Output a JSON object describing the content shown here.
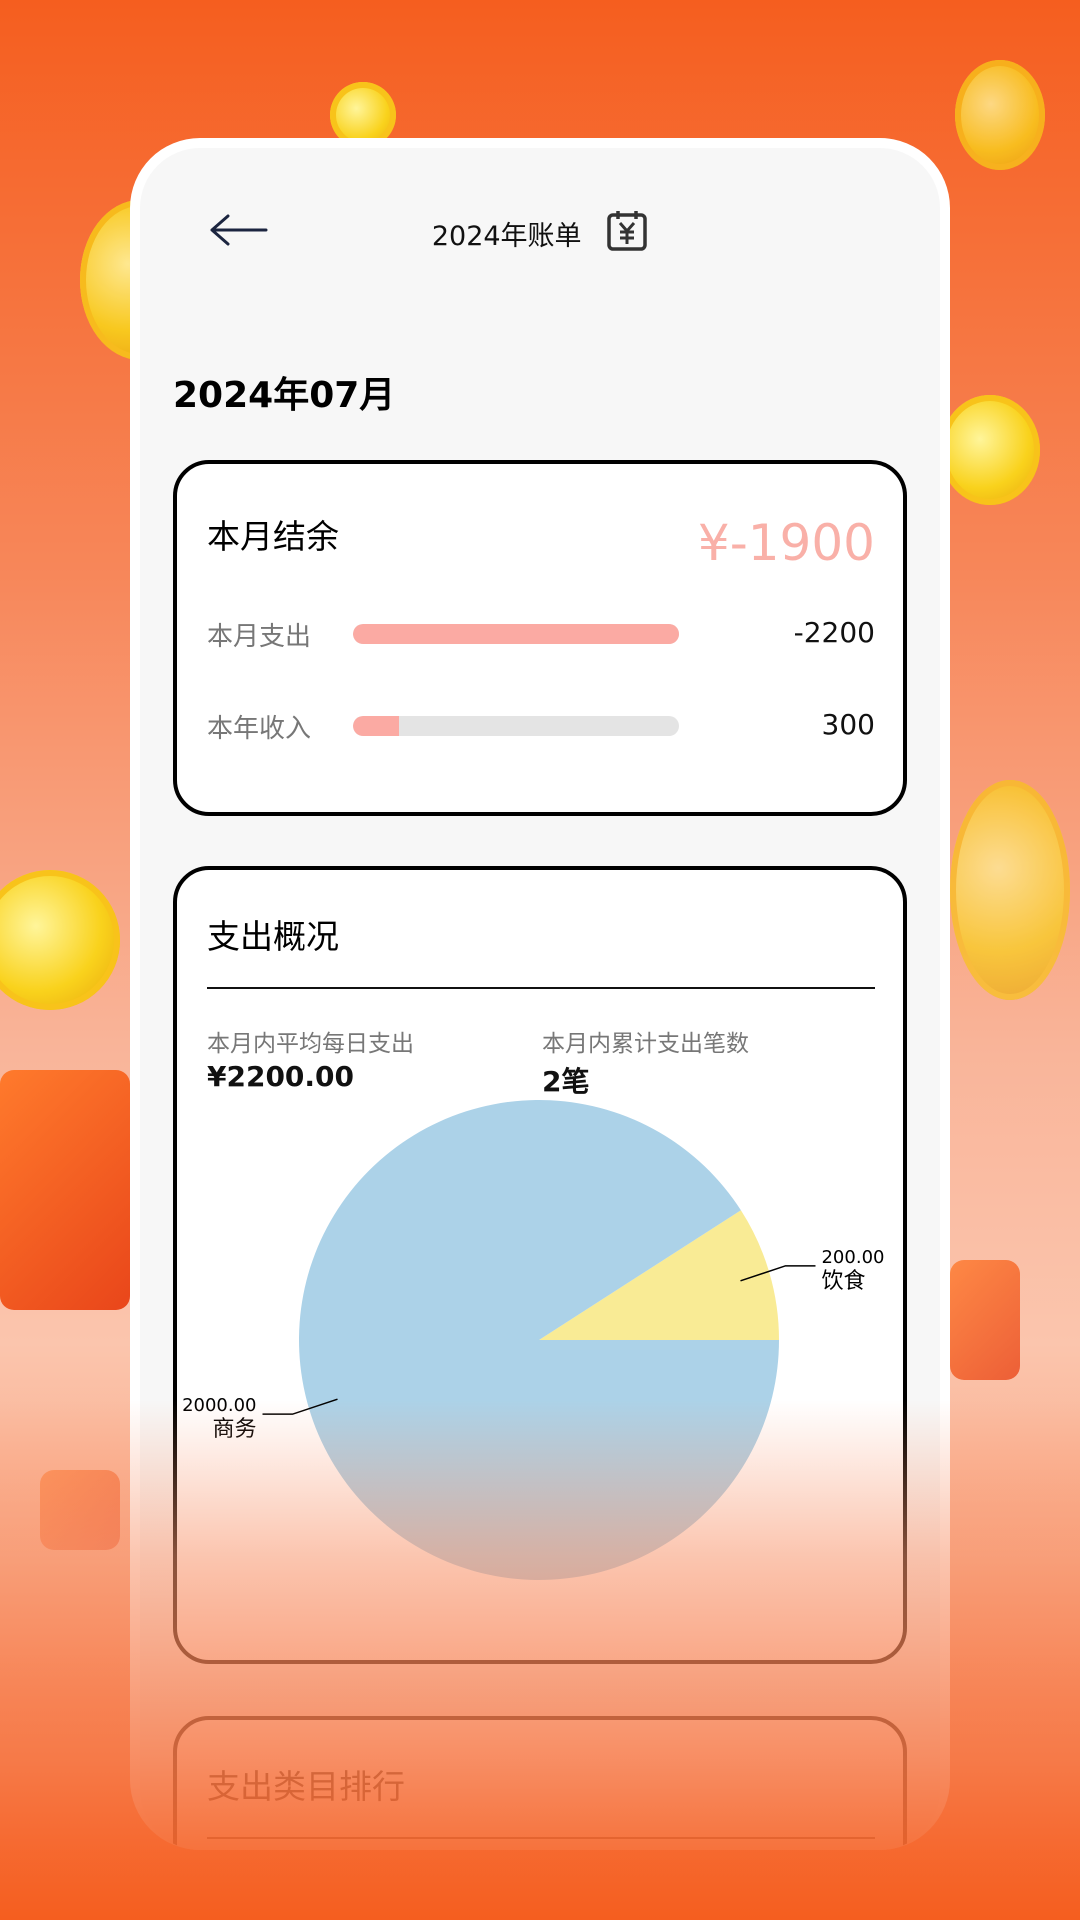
{
  "header": {
    "title": "2024年账单",
    "back_icon": "arrow-left-icon",
    "calendar_icon": "calendar-yen-icon"
  },
  "month": "2024年07月",
  "balance_card": {
    "title": "本月结余",
    "amount": "¥-1900",
    "amount_color": "#f9b0a8",
    "rows": [
      {
        "label": "本月支出",
        "value": "-2200",
        "fill_percent": 100
      },
      {
        "label": "本年收入",
        "value": "300",
        "fill_percent": 14
      }
    ]
  },
  "expense_card": {
    "title": "支出概况",
    "stats": [
      {
        "label": "本月内平均每日支出",
        "value": "¥2200.00"
      },
      {
        "label": "本月内累计支出笔数",
        "value": "2笔"
      }
    ]
  },
  "chart_data": {
    "type": "pie",
    "slices": [
      {
        "label": "饮食",
        "value": 200,
        "value_label": "200.00",
        "color": "#f9eb95"
      },
      {
        "label": "商务",
        "value": 2000,
        "value_label": "2000.00",
        "color": "#acd2e8"
      }
    ]
  },
  "ranking_card": {
    "title": "支出类目排行"
  }
}
